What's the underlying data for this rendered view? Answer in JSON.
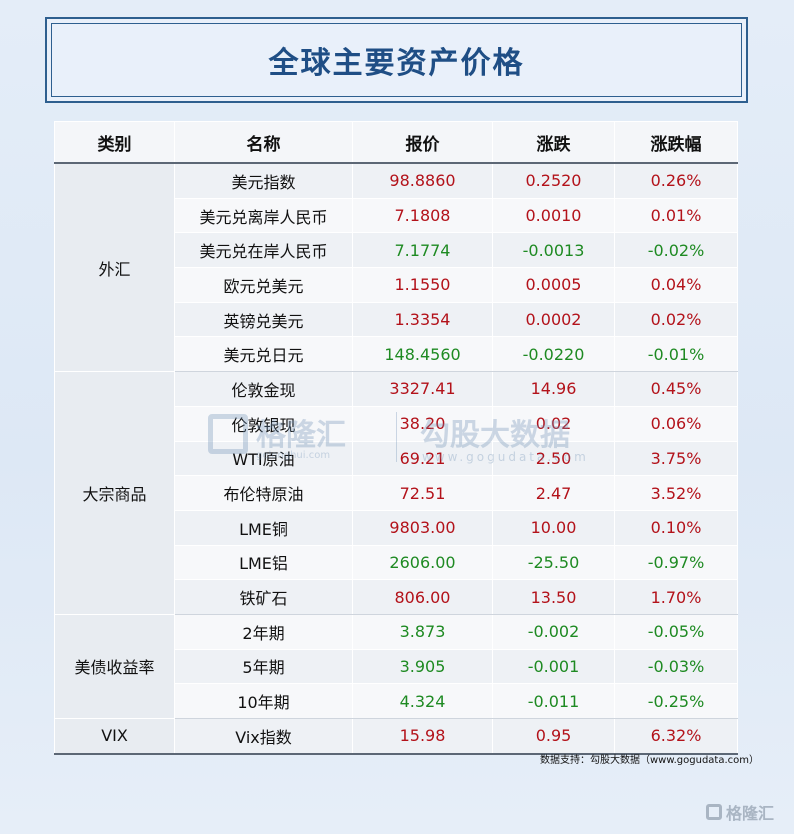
{
  "title": "全球主要资产价格",
  "headers": [
    "类别",
    "名称",
    "报价",
    "涨跌",
    "涨跌幅"
  ],
  "categories": [
    "外汇",
    "大宗商品",
    "美债收益率",
    "VIX"
  ],
  "rows": [
    {
      "name": "美元指数",
      "price": "98.8860",
      "change": "0.2520",
      "pct": "0.26%",
      "dir": "up"
    },
    {
      "name": "美元兑离岸人民币",
      "price": "7.1808",
      "change": "0.0010",
      "pct": "0.01%",
      "dir": "up"
    },
    {
      "name": "美元兑在岸人民币",
      "price": "7.1774",
      "change": "-0.0013",
      "pct": "-0.02%",
      "dir": "down"
    },
    {
      "name": "欧元兑美元",
      "price": "1.1550",
      "change": "0.0005",
      "pct": "0.04%",
      "dir": "up"
    },
    {
      "name": "英镑兑美元",
      "price": "1.3354",
      "change": "0.0002",
      "pct": "0.02%",
      "dir": "up"
    },
    {
      "name": "美元兑日元",
      "price": "148.4560",
      "change": "-0.0220",
      "pct": "-0.01%",
      "dir": "down"
    },
    {
      "name": "伦敦金现",
      "price": "3327.41",
      "change": "14.96",
      "pct": "0.45%",
      "dir": "up"
    },
    {
      "name": "伦敦银现",
      "price": "38.20",
      "change": "0.02",
      "pct": "0.06%",
      "dir": "up"
    },
    {
      "name": "WTI原油",
      "price": "69.21",
      "change": "2.50",
      "pct": "3.75%",
      "dir": "up"
    },
    {
      "name": "布伦特原油",
      "price": "72.51",
      "change": "2.47",
      "pct": "3.52%",
      "dir": "up"
    },
    {
      "name": "LME铜",
      "price": "9803.00",
      "change": "10.00",
      "pct": "0.10%",
      "dir": "up"
    },
    {
      "name": "LME铝",
      "price": "2606.00",
      "change": "-25.50",
      "pct": "-0.97%",
      "dir": "down"
    },
    {
      "name": "铁矿石",
      "price": "806.00",
      "change": "13.50",
      "pct": "1.70%",
      "dir": "up"
    },
    {
      "name": "2年期",
      "price": "3.873",
      "change": "-0.002",
      "pct": "-0.05%",
      "dir": "down"
    },
    {
      "name": "5年期",
      "price": "3.905",
      "change": "-0.001",
      "pct": "-0.03%",
      "dir": "down"
    },
    {
      "name": "10年期",
      "price": "4.324",
      "change": "-0.011",
      "pct": "-0.25%",
      "dir": "down"
    },
    {
      "name": "Vix指数",
      "price": "15.98",
      "change": "0.95",
      "pct": "6.32%",
      "dir": "up"
    }
  ],
  "watermark": {
    "brand": "格隆汇",
    "brand_url": "gelonghui.com",
    "brand2": "勾股大数据",
    "brand2_url": "www.gogudata.com"
  },
  "source": "数据支持：勾股大数据（www.gogudata.com）",
  "logo_text": "格隆汇",
  "colors": {
    "up": "#b3121a",
    "down": "#1e8a22",
    "title": "#1f4e85"
  }
}
